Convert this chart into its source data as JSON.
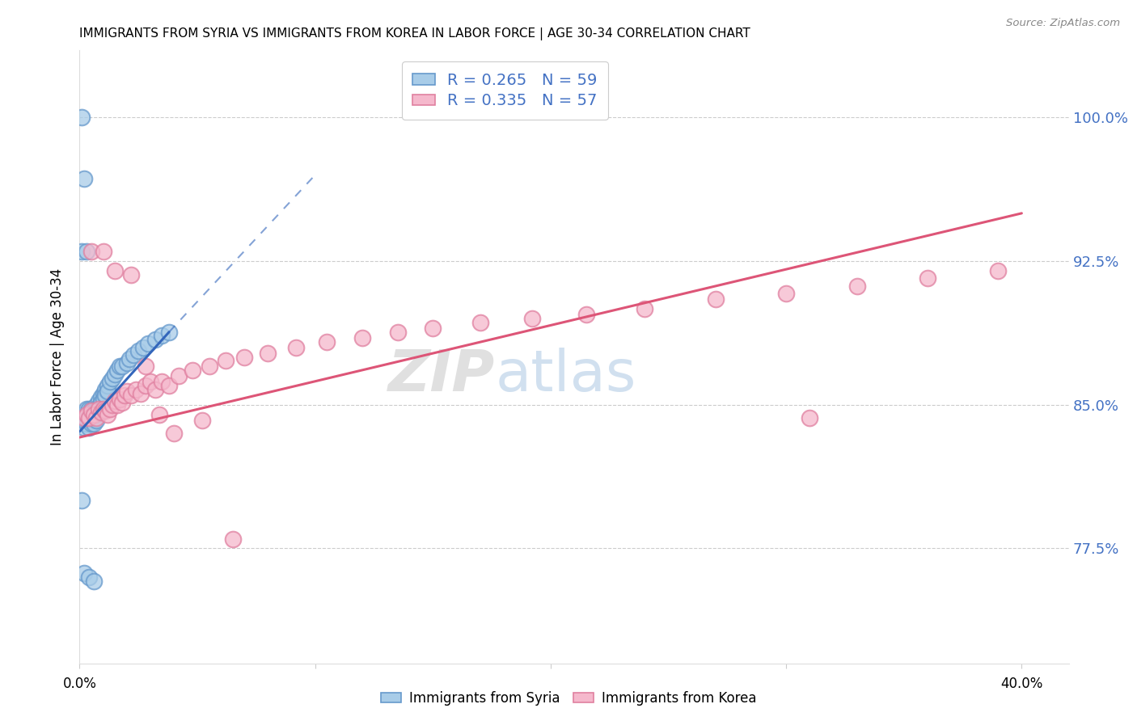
{
  "title": "IMMIGRANTS FROM SYRIA VS IMMIGRANTS FROM KOREA IN LABOR FORCE | AGE 30-34 CORRELATION CHART",
  "source": "Source: ZipAtlas.com",
  "ylabel": "In Labor Force | Age 30-34",
  "ytick_values": [
    0.775,
    0.85,
    0.925,
    1.0
  ],
  "ytick_labels": [
    "77.5%",
    "85.0%",
    "92.5%",
    "100.0%"
  ],
  "xlim": [
    0.0,
    0.42
  ],
  "ylim": [
    0.715,
    1.035
  ],
  "legend_r_syria": "R = 0.265",
  "legend_n_syria": "N = 59",
  "legend_r_korea": "R = 0.335",
  "legend_n_korea": "N = 57",
  "syria_face_color": "#a8cce8",
  "syria_edge_color": "#6699cc",
  "korea_face_color": "#f5b8cc",
  "korea_edge_color": "#e080a0",
  "syria_line_color": "#3366bb",
  "korea_line_color": "#dd5577",
  "watermark_text": "ZIPatlas",
  "syria_x": [
    0.001,
    0.001,
    0.001,
    0.002,
    0.002,
    0.002,
    0.002,
    0.003,
    0.003,
    0.003,
    0.003,
    0.004,
    0.004,
    0.004,
    0.004,
    0.005,
    0.005,
    0.005,
    0.005,
    0.005,
    0.006,
    0.006,
    0.006,
    0.006,
    0.007,
    0.007,
    0.007,
    0.007,
    0.008,
    0.008,
    0.008,
    0.009,
    0.009,
    0.009,
    0.01,
    0.01,
    0.011,
    0.011,
    0.012,
    0.012,
    0.013,
    0.014,
    0.015,
    0.016,
    0.017,
    0.018,
    0.02,
    0.021,
    0.023,
    0.025,
    0.027,
    0.029,
    0.032,
    0.035,
    0.038,
    0.001,
    0.002,
    0.004,
    0.006
  ],
  "syria_y": [
    1.0,
    0.93,
    0.845,
    0.968,
    0.845,
    0.842,
    0.838,
    0.93,
    0.848,
    0.843,
    0.84,
    0.848,
    0.845,
    0.843,
    0.838,
    0.848,
    0.846,
    0.843,
    0.842,
    0.84,
    0.848,
    0.846,
    0.843,
    0.84,
    0.85,
    0.848,
    0.845,
    0.842,
    0.852,
    0.849,
    0.846,
    0.854,
    0.851,
    0.848,
    0.856,
    0.853,
    0.858,
    0.855,
    0.86,
    0.857,
    0.862,
    0.864,
    0.866,
    0.868,
    0.87,
    0.87,
    0.872,
    0.874,
    0.876,
    0.878,
    0.88,
    0.882,
    0.884,
    0.886,
    0.888,
    0.8,
    0.762,
    0.76,
    0.758
  ],
  "korea_x": [
    0.002,
    0.003,
    0.004,
    0.005,
    0.006,
    0.007,
    0.008,
    0.009,
    0.01,
    0.011,
    0.012,
    0.013,
    0.014,
    0.015,
    0.016,
    0.017,
    0.018,
    0.019,
    0.02,
    0.022,
    0.024,
    0.026,
    0.028,
    0.03,
    0.032,
    0.035,
    0.038,
    0.042,
    0.048,
    0.055,
    0.062,
    0.07,
    0.08,
    0.092,
    0.105,
    0.12,
    0.135,
    0.15,
    0.17,
    0.192,
    0.215,
    0.24,
    0.27,
    0.3,
    0.33,
    0.36,
    0.39,
    0.31,
    0.005,
    0.01,
    0.015,
    0.022,
    0.028,
    0.034,
    0.04,
    0.052,
    0.065
  ],
  "korea_y": [
    0.843,
    0.845,
    0.843,
    0.847,
    0.845,
    0.843,
    0.848,
    0.846,
    0.848,
    0.847,
    0.845,
    0.848,
    0.85,
    0.852,
    0.85,
    0.853,
    0.851,
    0.855,
    0.857,
    0.855,
    0.858,
    0.856,
    0.86,
    0.862,
    0.858,
    0.862,
    0.86,
    0.865,
    0.868,
    0.87,
    0.873,
    0.875,
    0.877,
    0.88,
    0.883,
    0.885,
    0.888,
    0.89,
    0.893,
    0.895,
    0.897,
    0.9,
    0.905,
    0.908,
    0.912,
    0.916,
    0.92,
    0.843,
    0.93,
    0.93,
    0.92,
    0.918,
    0.87,
    0.845,
    0.835,
    0.842,
    0.78
  ],
  "syria_trend_x": [
    0.0,
    0.038
  ],
  "syria_trend_y": [
    0.836,
    0.888
  ],
  "korea_trend_x": [
    0.0,
    0.4
  ],
  "korea_trend_y": [
    0.833,
    0.95
  ]
}
